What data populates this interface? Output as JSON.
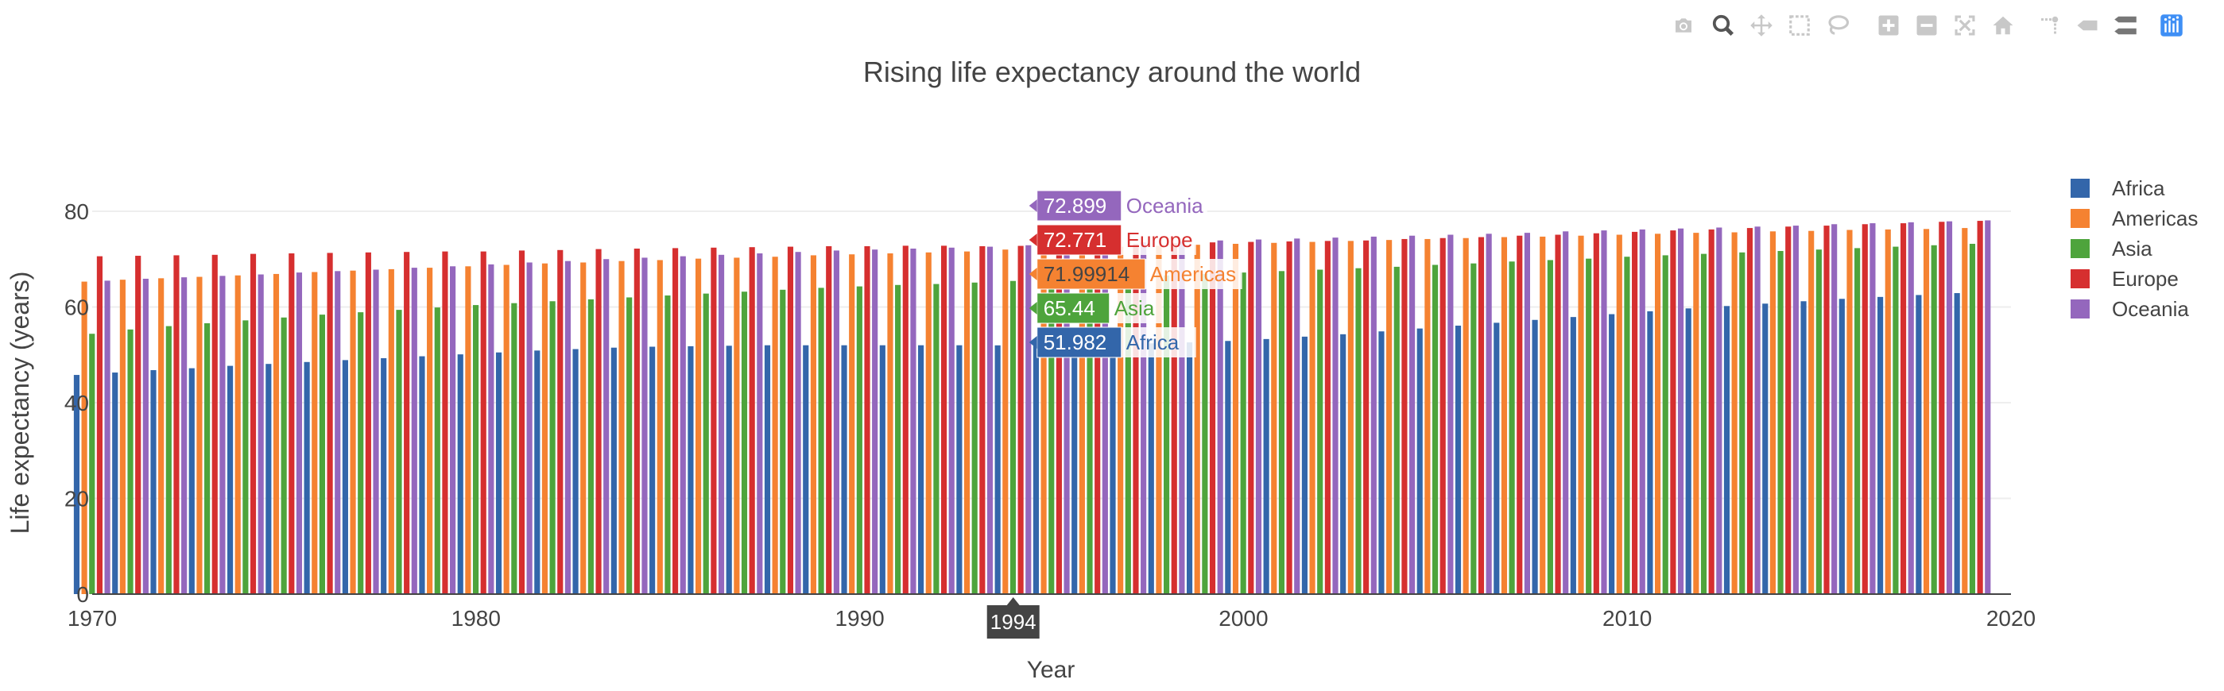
{
  "chart_data": {
    "type": "bar",
    "title": "Rising life expectancy around the world",
    "xlabel": "Year",
    "ylabel": "Life expectancy (years)",
    "xlim": [
      1970,
      2020
    ],
    "ylim": [
      0,
      80
    ],
    "x_ticks": [
      "1970",
      "1980",
      "1990",
      "2000",
      "2010",
      "2020"
    ],
    "y_ticks": [
      "0",
      "20",
      "40",
      "60",
      "80"
    ],
    "grid": true,
    "legend_position": "right",
    "years": [
      1970,
      1971,
      1972,
      1973,
      1974,
      1975,
      1976,
      1977,
      1978,
      1979,
      1980,
      1981,
      1982,
      1983,
      1984,
      1985,
      1986,
      1987,
      1988,
      1989,
      1990,
      1991,
      1992,
      1993,
      1994,
      1995,
      1996,
      1997,
      1998,
      1999,
      2000,
      2001,
      2002,
      2003,
      2004,
      2005,
      2006,
      2007,
      2008,
      2009,
      2010,
      2011,
      2012,
      2013,
      2014,
      2015,
      2016,
      2017,
      2018,
      2019
    ],
    "series": [
      {
        "name": "Africa",
        "color": "#3366aa",
        "values": [
          45.8,
          46.3,
          46.8,
          47.2,
          47.7,
          48.1,
          48.5,
          48.9,
          49.3,
          49.7,
          50.1,
          50.5,
          50.9,
          51.2,
          51.5,
          51.7,
          51.8,
          51.9,
          52.0,
          52.0,
          52.0,
          52.0,
          52.0,
          52.0,
          51.982,
          52.0,
          52.1,
          52.2,
          52.4,
          52.6,
          52.9,
          53.3,
          53.8,
          54.3,
          54.9,
          55.5,
          56.1,
          56.7,
          57.3,
          57.9,
          58.5,
          59.1,
          59.7,
          60.2,
          60.7,
          61.2,
          61.7,
          62.1,
          62.5,
          62.9
        ]
      },
      {
        "name": "Americas",
        "color": "#f58231",
        "values": [
          65.3,
          65.7,
          66.0,
          66.3,
          66.6,
          66.9,
          67.3,
          67.6,
          67.9,
          68.2,
          68.5,
          68.8,
          69.1,
          69.3,
          69.6,
          69.8,
          70.1,
          70.3,
          70.5,
          70.8,
          71.0,
          71.2,
          71.4,
          71.6,
          71.99914,
          72.2,
          72.4,
          72.6,
          72.8,
          73.0,
          73.2,
          73.4,
          73.6,
          73.8,
          74.0,
          74.2,
          74.4,
          74.6,
          74.7,
          74.9,
          75.1,
          75.3,
          75.5,
          75.6,
          75.8,
          75.9,
          76.1,
          76.2,
          76.3,
          76.5
        ]
      },
      {
        "name": "Asia",
        "color": "#4ea43c",
        "values": [
          54.4,
          55.3,
          56.0,
          56.6,
          57.2,
          57.8,
          58.4,
          58.9,
          59.4,
          59.9,
          60.4,
          60.8,
          61.2,
          61.6,
          62.0,
          62.4,
          62.8,
          63.2,
          63.6,
          64.0,
          64.3,
          64.6,
          64.8,
          65.1,
          65.44,
          65.7,
          66.0,
          66.3,
          66.6,
          66.9,
          67.2,
          67.5,
          67.8,
          68.1,
          68.4,
          68.8,
          69.1,
          69.5,
          69.8,
          70.1,
          70.5,
          70.8,
          71.1,
          71.4,
          71.7,
          72.0,
          72.3,
          72.6,
          72.9,
          73.2
        ]
      },
      {
        "name": "Europe",
        "color": "#d62f2f",
        "values": [
          70.6,
          70.7,
          70.8,
          70.9,
          71.1,
          71.2,
          71.3,
          71.4,
          71.5,
          71.6,
          71.6,
          71.8,
          71.9,
          72.1,
          72.2,
          72.3,
          72.4,
          72.5,
          72.6,
          72.7,
          72.7,
          72.8,
          72.8,
          72.7,
          72.771,
          72.9,
          73.1,
          73.2,
          73.3,
          73.5,
          73.6,
          73.7,
          73.8,
          73.9,
          74.2,
          74.4,
          74.6,
          74.9,
          75.1,
          75.4,
          75.7,
          76.0,
          76.2,
          76.5,
          76.8,
          77.0,
          77.3,
          77.5,
          77.8,
          78.0
        ]
      },
      {
        "name": "Oceania",
        "color": "#9467bd",
        "values": [
          65.5,
          65.9,
          66.2,
          66.5,
          66.8,
          67.2,
          67.5,
          67.8,
          68.2,
          68.5,
          68.9,
          69.3,
          69.6,
          70.0,
          70.3,
          70.6,
          70.9,
          71.2,
          71.5,
          71.8,
          72.0,
          72.2,
          72.4,
          72.6,
          72.899,
          73.1,
          73.3,
          73.5,
          73.7,
          73.9,
          74.1,
          74.3,
          74.5,
          74.7,
          74.9,
          75.1,
          75.3,
          75.5,
          75.8,
          76.0,
          76.2,
          76.4,
          76.6,
          76.8,
          77.0,
          77.3,
          77.5,
          77.7,
          77.9,
          78.1
        ]
      }
    ],
    "hover": {
      "year": "1994",
      "entries": [
        {
          "value": "72.899",
          "name": "Oceania"
        },
        {
          "value": "72.771",
          "name": "Europe"
        },
        {
          "value": "71.99914",
          "name": "Americas"
        },
        {
          "value": "65.44",
          "name": "Asia"
        },
        {
          "value": "51.982",
          "name": "Africa"
        }
      ]
    }
  },
  "modebar": [
    "camera-icon",
    "zoom-icon",
    "pan-icon",
    "box-select-icon",
    "lasso-select-icon",
    "zoom-in-icon",
    "zoom-out-icon",
    "autoscale-icon",
    "reset-axes-icon",
    "toggle-spike-lines-icon",
    "show-closest-data-icon",
    "compare-data-icon",
    "plotly-logo-icon"
  ]
}
